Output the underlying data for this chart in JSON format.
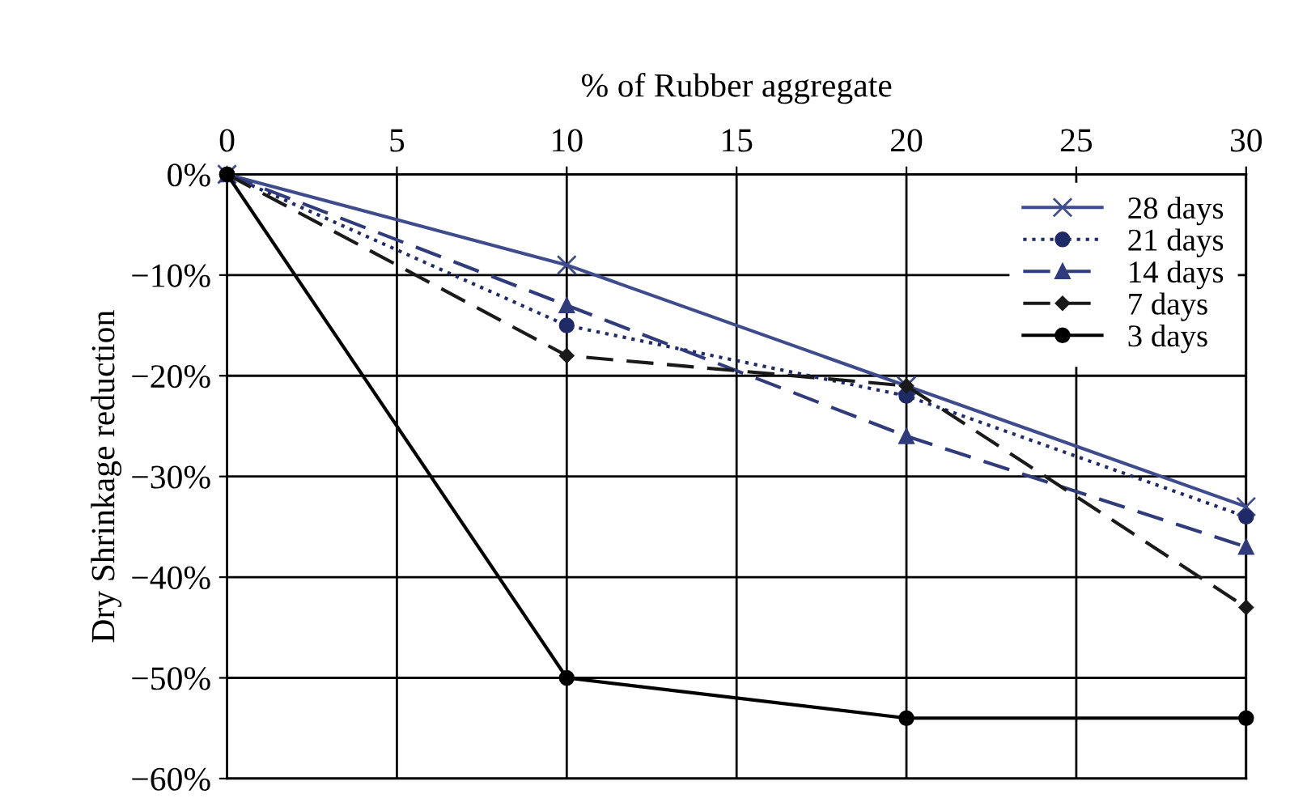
{
  "chart_data": {
    "type": "line",
    "xlabel": "% of Rubber aggregate",
    "ylabel": "Dry Shrinkage reduction",
    "x": [
      0,
      10,
      20,
      30
    ],
    "xlim": [
      0,
      30
    ],
    "xticks": [
      0,
      5,
      10,
      15,
      20,
      25,
      30
    ],
    "ylim": [
      -60,
      0
    ],
    "yticks": [
      {
        "value": 0,
        "label": "0%"
      },
      {
        "value": -10,
        "label": "−10%"
      },
      {
        "value": -20,
        "label": "−20%"
      },
      {
        "value": -30,
        "label": "−30%"
      },
      {
        "value": -40,
        "label": "−40%"
      },
      {
        "value": -50,
        "label": "−50%"
      },
      {
        "value": -60,
        "label": "−60%"
      }
    ],
    "grid": true,
    "legend": "top right",
    "series": [
      {
        "name": "28 days",
        "color": "#3e4c8e",
        "marker": "cross",
        "line_style": "solid",
        "values": [
          0,
          -9,
          -21,
          -33
        ]
      },
      {
        "name": "21 days",
        "color": "#1f2a66",
        "marker": "circle",
        "line_style": "dotted",
        "values": [
          0,
          -15,
          -22,
          -34
        ]
      },
      {
        "name": "14 days",
        "color": "#2f3b7a",
        "marker": "triangle",
        "line_style": "dashed",
        "values": [
          0,
          -13,
          -26,
          -37
        ]
      },
      {
        "name": "7 days",
        "color": "#1a1a1a",
        "marker": "diamond",
        "line_style": "dashed",
        "values": [
          0,
          -18,
          -21,
          -43
        ]
      },
      {
        "name": "3 days",
        "color": "#000000",
        "marker": "circle",
        "line_style": "solid",
        "values": [
          0,
          -50,
          -54,
          -54
        ]
      }
    ]
  }
}
